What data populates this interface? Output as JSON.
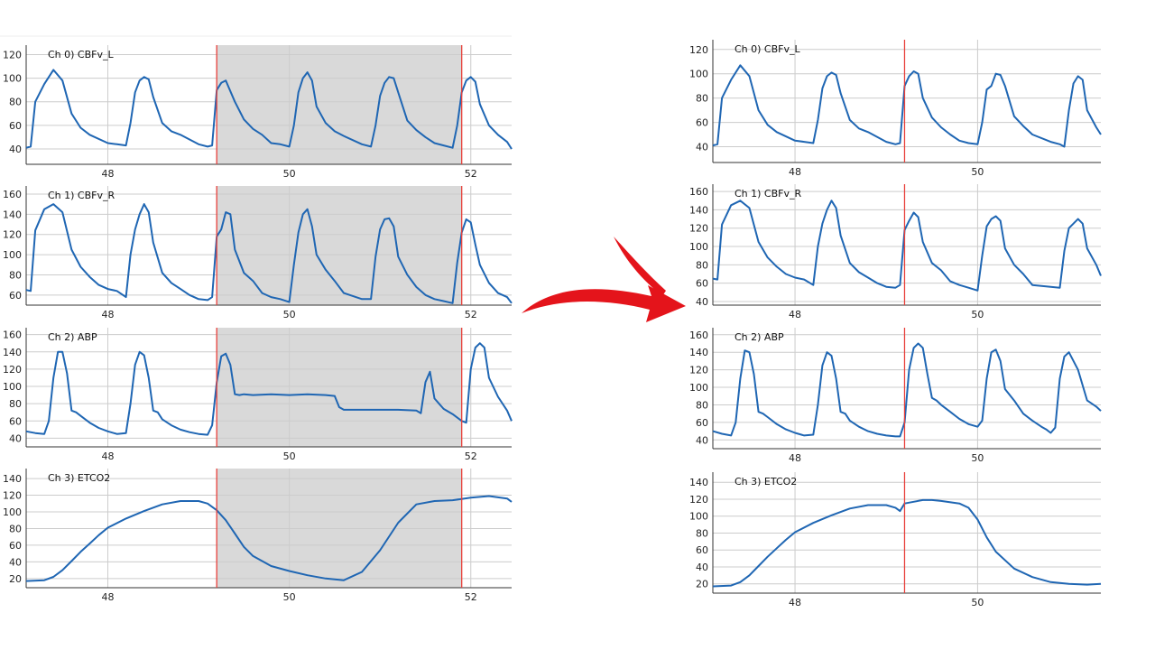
{
  "figure": {
    "arrow_color": "#e4141b",
    "trace_color": "#1f66b3",
    "marker_color": "#e8403a",
    "selection_color": "#d9d9d9",
    "grid_color": "#cccccc"
  },
  "chart_data": [
    {
      "type": "line",
      "panel": "before",
      "xlim": [
        47.1,
        52.45
      ],
      "xticks": [
        "48",
        "50",
        "52"
      ],
      "selection": [
        49.2,
        51.9
      ],
      "markers": [
        49.2,
        51.9
      ],
      "channels": [
        {
          "name": "Ch 0) CBFv_L",
          "ylim": [
            27,
            128
          ],
          "yticks": [
            "120",
            "100",
            "80",
            "60",
            "40"
          ],
          "x": [
            47.1,
            47.15,
            47.2,
            47.3,
            47.4,
            47.5,
            47.6,
            47.7,
            47.8,
            48.0,
            48.1,
            48.2,
            48.25,
            48.3,
            48.35,
            48.4,
            48.45,
            48.5,
            48.6,
            48.7,
            48.8,
            49.0,
            49.1,
            49.15,
            49.2,
            49.25,
            49.3,
            49.4,
            49.5,
            49.6,
            49.7,
            49.8,
            49.9,
            50.0,
            50.05,
            50.1,
            50.15,
            50.2,
            50.25,
            50.3,
            50.4,
            50.5,
            50.6,
            50.8,
            50.9,
            50.95,
            51.0,
            51.05,
            51.1,
            51.15,
            51.2,
            51.3,
            51.4,
            51.5,
            51.6,
            51.7,
            51.8,
            51.85,
            51.9,
            51.95,
            52.0,
            52.05,
            52.1,
            52.2,
            52.3,
            52.4,
            52.45
          ],
          "values": [
            41,
            42,
            80,
            95,
            107,
            98,
            70,
            58,
            52,
            45,
            44,
            43,
            62,
            88,
            98,
            101,
            99,
            84,
            62,
            55,
            52,
            44,
            42,
            43,
            90,
            96,
            98,
            80,
            65,
            57,
            52,
            45,
            44,
            42,
            60,
            88,
            100,
            105,
            98,
            76,
            62,
            55,
            51,
            44,
            42,
            60,
            85,
            96,
            101,
            100,
            88,
            64,
            56,
            50,
            45,
            43,
            41,
            60,
            88,
            98,
            101,
            97,
            78,
            60,
            52,
            46,
            40
          ]
        },
        {
          "name": "Ch 1) CBFv_R",
          "ylim": [
            50,
            168
          ],
          "yticks": [
            "160",
            "140",
            "120",
            "100",
            "80",
            "60"
          ],
          "x": [
            47.1,
            47.15,
            47.2,
            47.3,
            47.4,
            47.5,
            47.6,
            47.7,
            47.8,
            47.9,
            48.0,
            48.1,
            48.2,
            48.25,
            48.3,
            48.35,
            48.4,
            48.45,
            48.5,
            48.6,
            48.7,
            48.8,
            48.9,
            49.0,
            49.1,
            49.15,
            49.2,
            49.25,
            49.3,
            49.35,
            49.4,
            49.5,
            49.6,
            49.7,
            49.8,
            49.9,
            50.0,
            50.05,
            50.1,
            50.15,
            50.2,
            50.25,
            50.3,
            50.4,
            50.5,
            50.6,
            50.8,
            50.9,
            50.95,
            51.0,
            51.05,
            51.1,
            51.15,
            51.2,
            51.3,
            51.4,
            51.5,
            51.6,
            51.7,
            51.8,
            51.85,
            51.9,
            51.95,
            52.0,
            52.05,
            52.1,
            52.2,
            52.3,
            52.4,
            52.45
          ],
          "values": [
            65,
            64,
            124,
            145,
            150,
            142,
            105,
            88,
            78,
            70,
            66,
            64,
            58,
            100,
            125,
            140,
            150,
            142,
            112,
            82,
            72,
            66,
            60,
            56,
            55,
            58,
            118,
            125,
            142,
            140,
            105,
            82,
            74,
            62,
            58,
            56,
            53,
            90,
            122,
            140,
            145,
            128,
            100,
            85,
            74,
            62,
            56,
            56,
            98,
            125,
            135,
            136,
            128,
            98,
            80,
            68,
            60,
            56,
            54,
            52,
            92,
            122,
            135,
            132,
            110,
            90,
            72,
            62,
            58,
            52
          ]
        },
        {
          "name": "Ch 2) ABP",
          "ylim": [
            30,
            168
          ],
          "yticks": [
            "160",
            "140",
            "120",
            "100",
            "80",
            "60",
            "40"
          ],
          "x": [
            47.1,
            47.2,
            47.3,
            47.35,
            47.4,
            47.45,
            47.5,
            47.55,
            47.6,
            47.65,
            47.7,
            47.8,
            47.9,
            48.0,
            48.1,
            48.2,
            48.25,
            48.3,
            48.35,
            48.4,
            48.45,
            48.5,
            48.55,
            48.6,
            48.7,
            48.8,
            48.9,
            49.0,
            49.1,
            49.15,
            49.2,
            49.25,
            49.3,
            49.35,
            49.4,
            49.45,
            49.5,
            49.6,
            49.8,
            50.0,
            50.2,
            50.4,
            50.5,
            50.55,
            50.6,
            50.8,
            51.0,
            51.2,
            51.4,
            51.45,
            51.5,
            51.55,
            51.6,
            51.65,
            51.7,
            51.8,
            51.9,
            51.95,
            52.0,
            52.05,
            52.1,
            52.15,
            52.2,
            52.3,
            52.4,
            52.45
          ],
          "values": [
            48,
            46,
            45,
            60,
            110,
            140,
            140,
            115,
            72,
            70,
            66,
            58,
            52,
            48,
            45,
            46,
            80,
            125,
            140,
            136,
            110,
            72,
            70,
            62,
            55,
            50,
            47,
            45,
            44,
            55,
            105,
            135,
            138,
            125,
            91,
            90,
            91,
            90,
            91,
            90,
            91,
            90,
            89,
            76,
            73,
            73,
            73,
            73,
            72,
            69,
            105,
            117,
            86,
            80,
            74,
            68,
            60,
            58,
            120,
            145,
            150,
            145,
            110,
            88,
            72,
            60
          ]
        },
        {
          "name": "Ch 3) ETCO2",
          "ylim": [
            9,
            152
          ],
          "yticks": [
            "140",
            "120",
            "100",
            "80",
            "60",
            "40",
            "20"
          ],
          "x": [
            47.1,
            47.3,
            47.4,
            47.5,
            47.6,
            47.7,
            47.8,
            47.9,
            48.0,
            48.2,
            48.4,
            48.6,
            48.8,
            49.0,
            49.1,
            49.2,
            49.3,
            49.4,
            49.5,
            49.6,
            49.8,
            50.0,
            50.2,
            50.4,
            50.6,
            50.8,
            51.0,
            51.2,
            51.4,
            51.6,
            51.8,
            52.0,
            52.2,
            52.4,
            52.45
          ],
          "values": [
            17,
            18,
            22,
            30,
            41,
            52,
            62,
            72,
            81,
            92,
            101,
            109,
            113,
            113,
            110,
            102,
            90,
            74,
            58,
            47,
            35,
            29,
            24,
            20,
            18,
            28,
            54,
            87,
            109,
            113,
            114,
            117,
            119,
            116,
            112
          ]
        }
      ]
    },
    {
      "type": "line",
      "panel": "after",
      "xlim": [
        47.1,
        51.35
      ],
      "xticks": [
        "48",
        "50"
      ],
      "markers": [
        49.2
      ],
      "channels": [
        {
          "name": "Ch 0) CBFv_L",
          "ylim": [
            27,
            128
          ],
          "yticks": [
            "120",
            "100",
            "80",
            "60",
            "40"
          ],
          "x": [
            47.1,
            47.15,
            47.2,
            47.3,
            47.4,
            47.5,
            47.6,
            47.7,
            47.8,
            48.0,
            48.1,
            48.2,
            48.25,
            48.3,
            48.35,
            48.4,
            48.45,
            48.5,
            48.6,
            48.7,
            48.8,
            49.0,
            49.1,
            49.15,
            49.2,
            49.25,
            49.3,
            49.35,
            49.4,
            49.5,
            49.6,
            49.7,
            49.8,
            49.9,
            50.0,
            50.05,
            50.1,
            50.15,
            50.2,
            50.25,
            50.3,
            50.4,
            50.5,
            50.6,
            50.8,
            50.9,
            50.95,
            51.0,
            51.05,
            51.1,
            51.15,
            51.2,
            51.3,
            51.35
          ],
          "values": [
            41,
            42,
            80,
            95,
            107,
            98,
            70,
            58,
            52,
            45,
            44,
            43,
            62,
            88,
            98,
            101,
            99,
            84,
            62,
            55,
            52,
            44,
            42,
            43,
            90,
            98,
            102,
            100,
            80,
            64,
            56,
            50,
            45,
            43,
            42,
            60,
            87,
            90,
            100,
            99,
            90,
            65,
            57,
            50,
            44,
            42,
            40,
            70,
            92,
            98,
            95,
            70,
            56,
            50
          ]
        },
        {
          "name": "Ch 1) CBFv_R",
          "ylim": [
            36,
            168
          ],
          "yticks": [
            "160",
            "140",
            "120",
            "100",
            "80",
            "60",
            "40"
          ],
          "x": [
            47.1,
            47.15,
            47.2,
            47.3,
            47.4,
            47.5,
            47.6,
            47.7,
            47.8,
            47.9,
            48.0,
            48.1,
            48.2,
            48.25,
            48.3,
            48.35,
            48.4,
            48.45,
            48.5,
            48.6,
            48.7,
            48.8,
            48.9,
            49.0,
            49.1,
            49.15,
            49.2,
            49.25,
            49.3,
            49.35,
            49.4,
            49.5,
            49.6,
            49.7,
            49.8,
            49.9,
            50.0,
            50.05,
            50.1,
            50.15,
            50.2,
            50.25,
            50.3,
            50.4,
            50.5,
            50.6,
            50.8,
            50.9,
            50.95,
            51.0,
            51.05,
            51.1,
            51.15,
            51.2,
            51.3,
            51.35
          ],
          "values": [
            65,
            64,
            124,
            145,
            150,
            142,
            105,
            88,
            78,
            70,
            66,
            64,
            58,
            100,
            125,
            140,
            150,
            142,
            112,
            82,
            72,
            66,
            60,
            56,
            55,
            58,
            118,
            128,
            137,
            132,
            105,
            82,
            74,
            62,
            58,
            55,
            52,
            90,
            122,
            130,
            133,
            128,
            98,
            80,
            70,
            58,
            56,
            55,
            95,
            120,
            125,
            130,
            125,
            98,
            80,
            68
          ]
        },
        {
          "name": "Ch 2) ABP",
          "ylim": [
            30,
            168
          ],
          "yticks": [
            "160",
            "140",
            "120",
            "100",
            "80",
            "60",
            "40"
          ],
          "x": [
            47.1,
            47.2,
            47.3,
            47.35,
            47.4,
            47.45,
            47.5,
            47.55,
            47.6,
            47.65,
            47.7,
            47.8,
            47.9,
            48.0,
            48.1,
            48.2,
            48.25,
            48.3,
            48.35,
            48.4,
            48.45,
            48.5,
            48.55,
            48.6,
            48.7,
            48.8,
            48.9,
            49.0,
            49.1,
            49.15,
            49.2,
            49.25,
            49.3,
            49.35,
            49.4,
            49.45,
            49.5,
            49.55,
            49.6,
            49.7,
            49.8,
            49.9,
            50.0,
            50.05,
            50.1,
            50.15,
            50.2,
            50.25,
            50.3,
            50.4,
            50.5,
            50.6,
            50.7,
            50.75,
            50.8,
            50.85,
            50.9,
            50.95,
            51.0,
            51.1,
            51.2,
            51.3,
            51.35
          ],
          "values": [
            50,
            47,
            45,
            60,
            110,
            142,
            140,
            115,
            72,
            70,
            66,
            58,
            52,
            48,
            45,
            46,
            80,
            125,
            140,
            136,
            110,
            72,
            70,
            62,
            55,
            50,
            47,
            45,
            44,
            44,
            60,
            120,
            145,
            150,
            145,
            115,
            88,
            85,
            80,
            72,
            64,
            58,
            55,
            62,
            110,
            140,
            143,
            130,
            98,
            85,
            70,
            62,
            55,
            52,
            48,
            54,
            110,
            135,
            140,
            120,
            85,
            78,
            73
          ]
        },
        {
          "name": "Ch 3) ETCO2",
          "ylim": [
            9,
            152
          ],
          "yticks": [
            "140",
            "120",
            "100",
            "80",
            "60",
            "40",
            "20"
          ],
          "x": [
            47.1,
            47.3,
            47.4,
            47.5,
            47.6,
            47.7,
            47.8,
            47.9,
            48.0,
            48.2,
            48.4,
            48.6,
            48.8,
            49.0,
            49.1,
            49.15,
            49.2,
            49.3,
            49.4,
            49.5,
            49.6,
            49.8,
            49.9,
            50.0,
            50.1,
            50.2,
            50.4,
            50.6,
            50.8,
            51.0,
            51.2,
            51.35
          ],
          "values": [
            17,
            18,
            22,
            30,
            41,
            52,
            62,
            72,
            81,
            92,
            101,
            109,
            113,
            113,
            110,
            106,
            115,
            117,
            119,
            119,
            118,
            115,
            110,
            96,
            75,
            58,
            38,
            28,
            22,
            20,
            19,
            20
          ]
        }
      ]
    }
  ]
}
